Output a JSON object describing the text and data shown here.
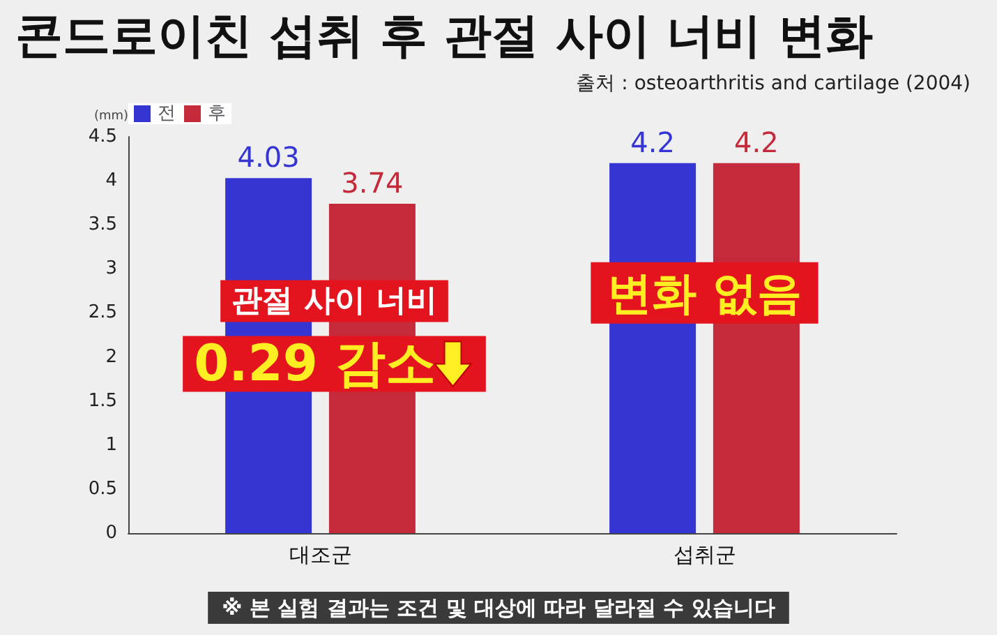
{
  "chart_data": {
    "type": "bar",
    "title": "콘드로이친 섭취 후 관절 사이 너비 변화",
    "subtitle": "출처 : osteoarthritis and cartilage (2004)",
    "ylabel": "(mm)",
    "categories": [
      "대조군",
      "섭취군"
    ],
    "series": [
      {
        "name": "전",
        "color": "#3535d4",
        "values": [
          4.03,
          4.2
        ]
      },
      {
        "name": "후",
        "color": "#c42a3a",
        "values": [
          3.74,
          4.2
        ]
      }
    ],
    "ylim": [
      0,
      4.5
    ],
    "yticks": [
      0,
      0.5,
      1,
      1.5,
      2,
      2.5,
      3,
      3.5,
      4,
      4.5
    ],
    "grid": false,
    "legend": "top left",
    "data_labels": true,
    "annotations": [
      "관절 사이 너비\n0.29 감소",
      "변화 없음",
      "※ 본 실험 결과는 조건 및 대상에 따라 달라질 수 있습니다"
    ]
  }
}
